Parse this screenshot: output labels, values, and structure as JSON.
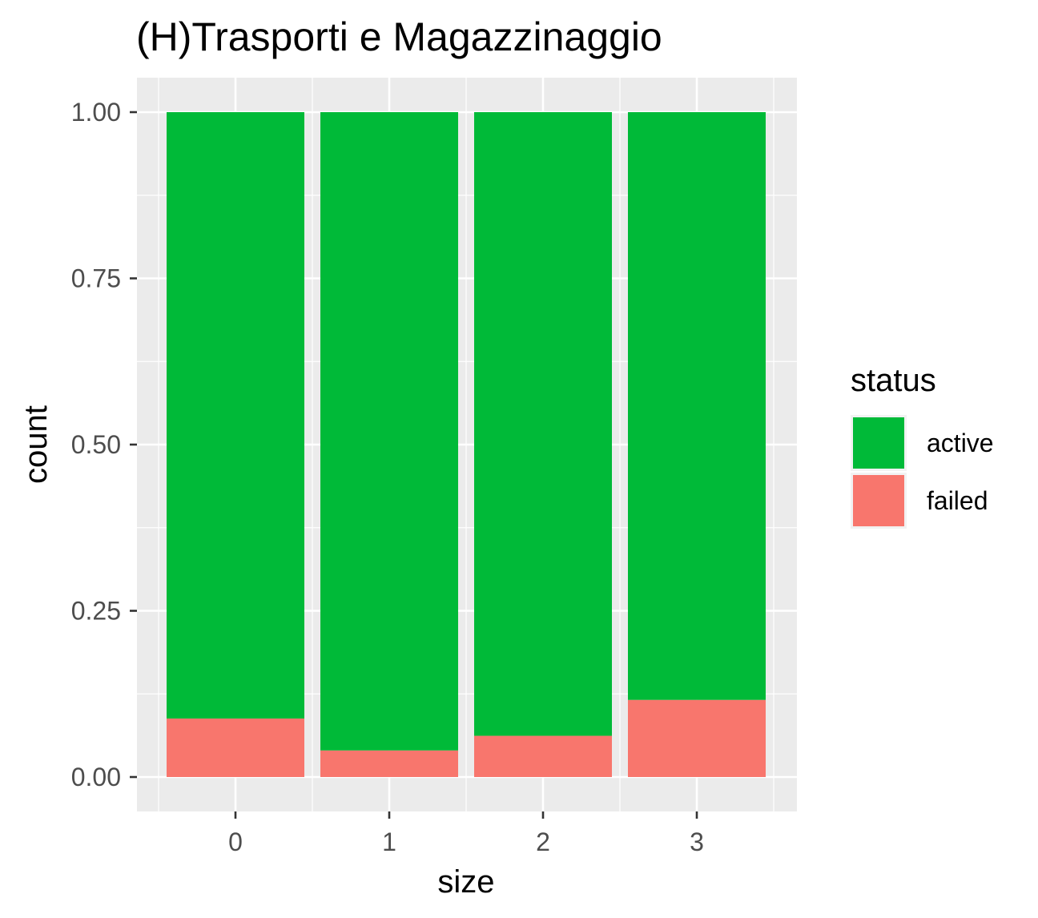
{
  "chart_data": {
    "type": "bar",
    "stacked": true,
    "title": "(H)Trasporti e Magazzinaggio",
    "xlabel": "size",
    "ylabel": "count",
    "categories": [
      "0",
      "1",
      "2",
      "3"
    ],
    "ylim": [
      0,
      1
    ],
    "yticks": [
      0,
      0.25,
      0.5,
      0.75,
      1
    ],
    "ytick_labels": [
      "0.00",
      "0.25",
      "0.50",
      "0.75",
      "1.00"
    ],
    "grid": true,
    "legend": {
      "title": "status",
      "position": "right"
    },
    "series": [
      {
        "name": "failed",
        "color": "#F8766D",
        "values": [
          0.088,
          0.04,
          0.062,
          0.116
        ]
      },
      {
        "name": "active",
        "color": "#00BA38",
        "values": [
          0.912,
          0.96,
          0.938,
          0.884
        ]
      }
    ]
  }
}
